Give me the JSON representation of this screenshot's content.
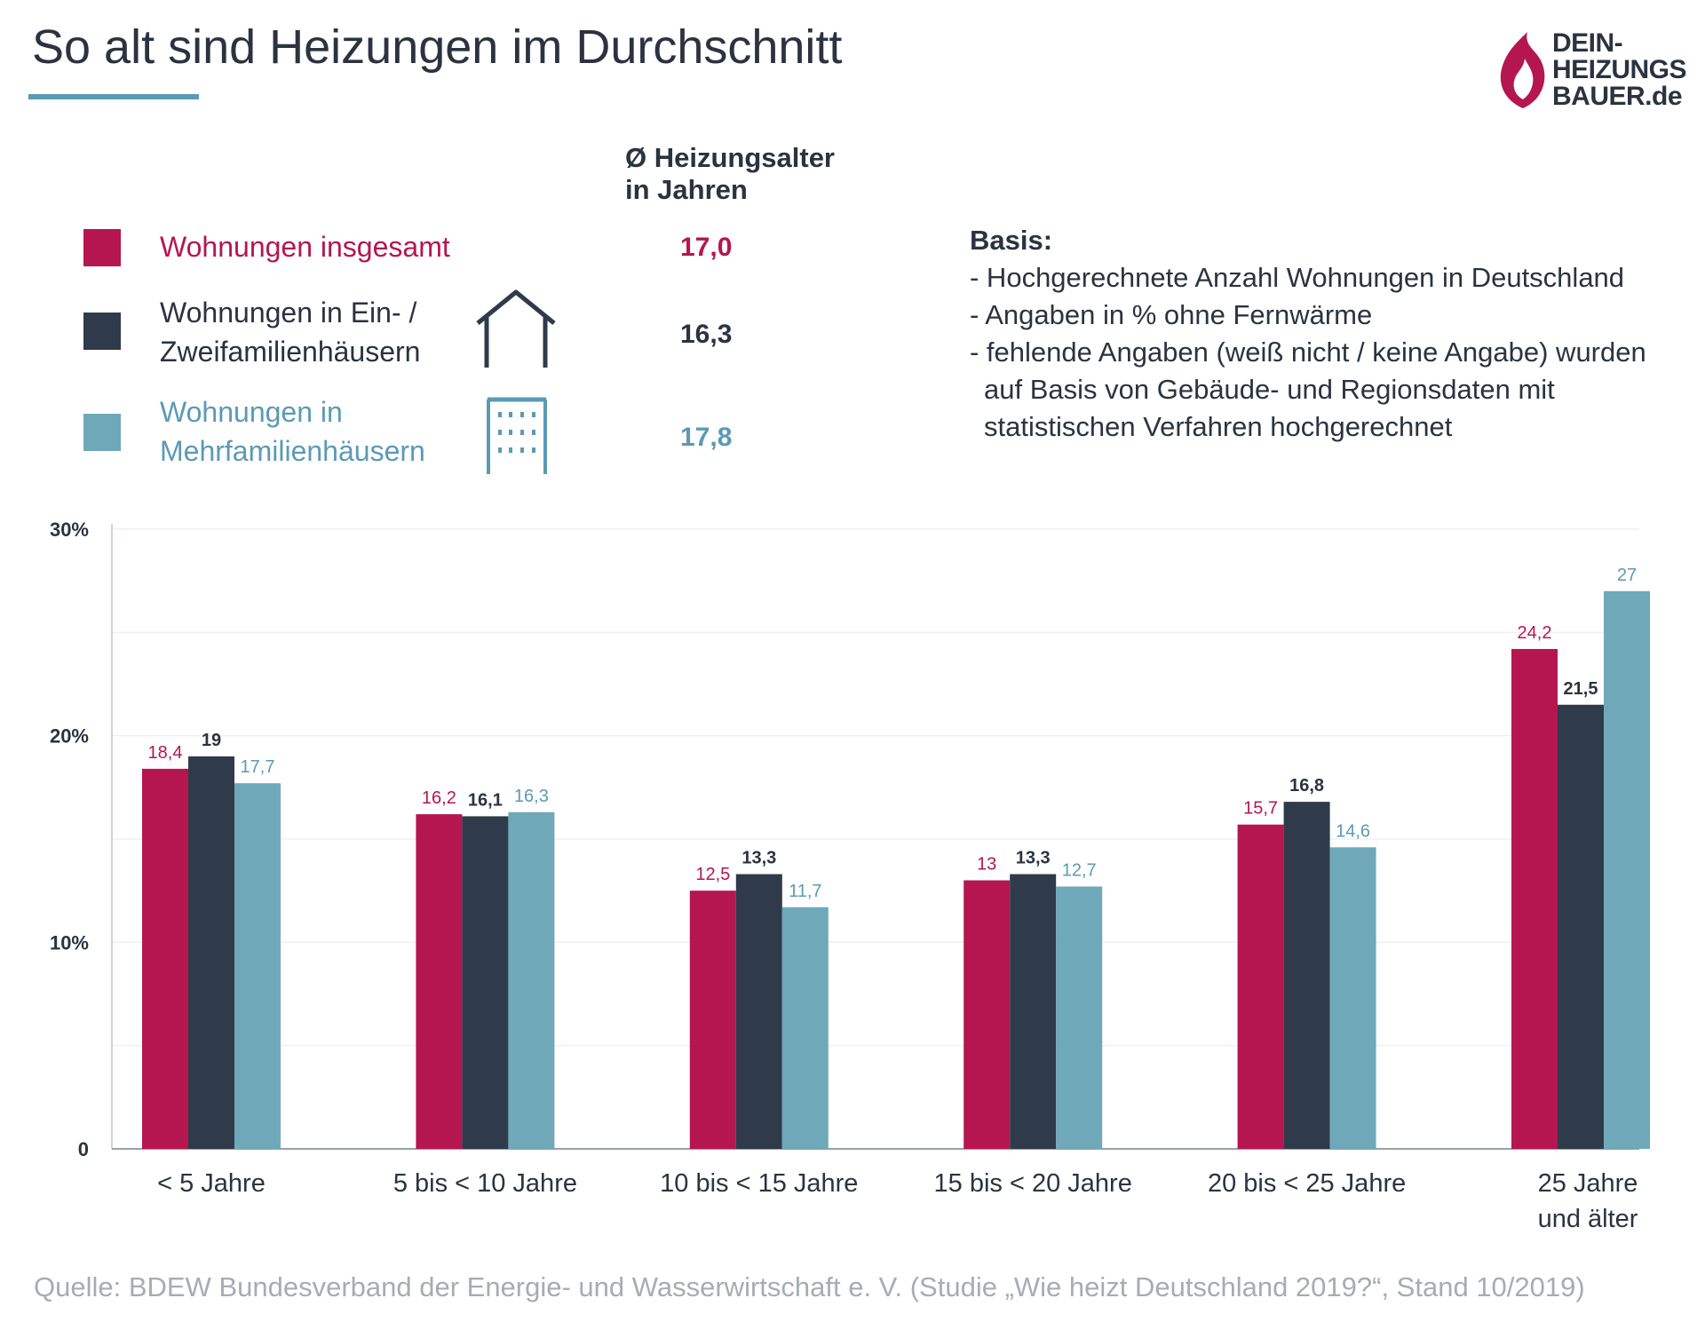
{
  "title": "So alt sind Heizungen im Durchschnitt",
  "logo": {
    "lines": [
      "DEIN-",
      "HEIZUNGS",
      "BAUER.de"
    ]
  },
  "average_header": {
    "line1": "Ø Heizungsalter",
    "line2": "in Jahren"
  },
  "legend": [
    {
      "label_lines": [
        "Wohnungen insgesamt"
      ],
      "average": "17,0",
      "color": "#b5164f",
      "icon": "none"
    },
    {
      "label_lines": [
        "Wohnungen in Ein- /",
        "Zweifamilienhäusern"
      ],
      "average": "16,3",
      "color": "#2f3b4a",
      "icon": "house-icon"
    },
    {
      "label_lines": [
        "Wohnungen in",
        "Mehrfamilienhäusern"
      ],
      "average": "17,8",
      "color": "#6fa9b9",
      "icon": "apartment-building-icon"
    }
  ],
  "basis": {
    "title": "Basis:",
    "lines": [
      "- Hochgerechnete Anzahl Wohnungen in Deutschland",
      "- Angaben in % ohne Fernwärme",
      "- fehlende Angaben (weiß nicht / keine Angabe) wurden",
      "  auf Basis von Gebäude- und Regionsdaten mit",
      "  statistischen Verfahren hochgerechnet"
    ]
  },
  "source": "Quelle: BDEW Bundesverband der Energie- und Wasserwirtschaft e. V. (Studie „Wie heizt Deutschland 2019?“, Stand 10/2019)",
  "chart_data": {
    "type": "bar",
    "title": "So alt sind Heizungen im Durchschnitt",
    "xlabel": "",
    "ylabel": "",
    "ylim": [
      0,
      30
    ],
    "yticks": [
      {
        "value": 0,
        "label": "0"
      },
      {
        "value": 10,
        "label": "10%"
      },
      {
        "value": 20,
        "label": "20%"
      },
      {
        "value": 30,
        "label": "30%"
      }
    ],
    "grid": true,
    "categories": [
      [
        "< 5 Jahre"
      ],
      [
        "5 bis < 10 Jahre"
      ],
      [
        "10 bis < 15 Jahre"
      ],
      [
        "15 bis < 20 Jahre"
      ],
      [
        "20 bis < 25 Jahre"
      ],
      [
        "25 Jahre",
        "und älter"
      ]
    ],
    "series": [
      {
        "name": "Wohnungen insgesamt",
        "color": "#b5164f",
        "values": [
          18.4,
          16.2,
          12.5,
          13,
          15.7,
          24.2
        ],
        "labels": [
          "18,4",
          "16,2",
          "12,5",
          "13",
          "15,7",
          "24,2"
        ]
      },
      {
        "name": "Wohnungen in Ein- / Zweifamilienhäusern",
        "color": "#2f3b4a",
        "values": [
          19,
          16.1,
          13.3,
          13.3,
          16.8,
          21.5
        ],
        "labels": [
          "19",
          "16,1",
          "13,3",
          "13,3",
          "16,8",
          "21,5"
        ]
      },
      {
        "name": "Wohnungen in Mehrfamilienhäusern",
        "color": "#6fa9b9",
        "values": [
          17.7,
          16.3,
          11.7,
          12.7,
          14.6,
          27
        ],
        "labels": [
          "17,7",
          "16,3",
          "11,7",
          "12,7",
          "14,6",
          "27"
        ]
      }
    ]
  }
}
